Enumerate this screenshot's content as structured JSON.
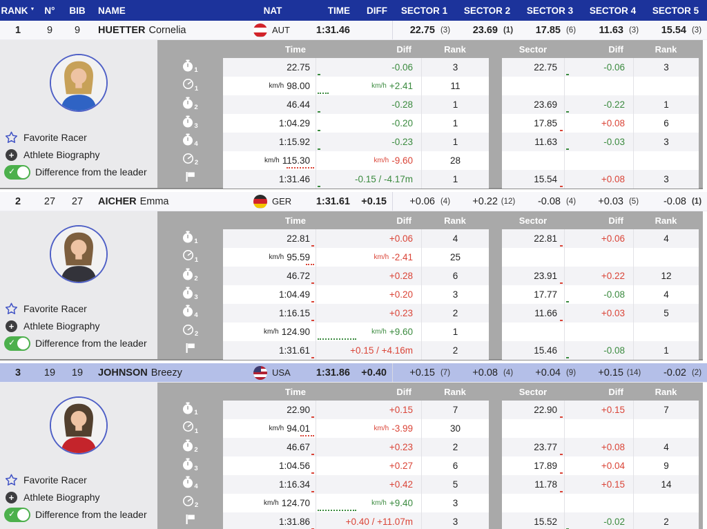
{
  "table": {
    "columns": {
      "rank": "RANK",
      "no": "N°",
      "bib": "BIB",
      "name": "NAME",
      "nat": "NAT",
      "time": "TIME",
      "diff": "DIFF",
      "sectors": [
        "SECTOR 1",
        "SECTOR 2",
        "SECTOR 3",
        "SECTOR 4",
        "SECTOR 5"
      ]
    }
  },
  "icons": {
    "sort_desc": "▼",
    "plus_glyph": "+",
    "check_glyph": "✓"
  },
  "colors": {
    "header_navy": "#1c339b",
    "positive_green": "#3a8a3e",
    "negative_red": "#da4437",
    "highlight_row": "#b4bfe8",
    "panel_gray": "#a9a9a9",
    "info_gray": "#eaeaec",
    "toggle_green": "#4cb04c",
    "accent_blue": "#4f60c6"
  },
  "panel": {
    "headers": {
      "time": "Time",
      "diff": "Diff",
      "rank": "Rank",
      "sector": "Sector",
      "diff2": "Diff",
      "rank2": "Rank"
    },
    "options": {
      "favorite": "Favorite Racer",
      "bio": "Athlete Biography",
      "toggle": "Difference from the leader",
      "toggle_state": "on"
    },
    "metrics": [
      {
        "type": "stopwatch",
        "sub": "1"
      },
      {
        "type": "speed",
        "sub": "1"
      },
      {
        "type": "stopwatch",
        "sub": "2"
      },
      {
        "type": "stopwatch",
        "sub": "3"
      },
      {
        "type": "stopwatch",
        "sub": "4"
      },
      {
        "type": "speed",
        "sub": "2"
      },
      {
        "type": "flag",
        "sub": ""
      }
    ]
  },
  "racers": [
    {
      "rank": "1",
      "no": "9",
      "bib": "9",
      "family": "HUETTER",
      "given": "Cornelia",
      "nat": "AUT",
      "time": "1:31.46",
      "diff": "",
      "highlight": false,
      "flag": {
        "stripes": [
          "#d2232a",
          "#ffffff",
          "#d2232a"
        ]
      },
      "avatar": {
        "hair": "#c7a158",
        "skin": "#eec3a3",
        "jacket": "#2f63c4"
      },
      "sectors": [
        {
          "v": "22.75",
          "r": "(3)",
          "vb": true,
          "rb": false
        },
        {
          "v": "23.69",
          "r": "(1)",
          "vb": true,
          "rb": true
        },
        {
          "v": "17.85",
          "r": "(6)",
          "vb": true,
          "rb": false
        },
        {
          "v": "11.63",
          "r": "(3)",
          "vb": true,
          "rb": false
        },
        {
          "v": "15.54",
          "r": "(3)",
          "vb": true,
          "rb": false
        }
      ],
      "rows": [
        {
          "t": "22.75",
          "u": 0,
          "d": "-0.06",
          "dc": "g",
          "du": 0,
          "rk": "3",
          "s": "22.75",
          "sd": "-0.06",
          "sdc": "g",
          "sr": "3",
          "dn": 1
        },
        {
          "t": "98.00",
          "u": 1,
          "d": "+2.41",
          "dc": "g",
          "du": 1,
          "rk": "11",
          "s": "",
          "sd": "",
          "sdc": "",
          "sr": "",
          "dn": 4
        },
        {
          "t": "46.44",
          "u": 0,
          "d": "-0.28",
          "dc": "g",
          "du": 0,
          "rk": "1",
          "s": "23.69",
          "sd": "-0.22",
          "sdc": "g",
          "sr": "1",
          "dn": 1
        },
        {
          "t": "1:04.29",
          "u": 0,
          "d": "-0.20",
          "dc": "g",
          "du": 0,
          "rk": "1",
          "s": "17.85",
          "sd": "+0.08",
          "sdc": "r",
          "sr": "6",
          "dn": 1
        },
        {
          "t": "1:15.92",
          "u": 0,
          "d": "-0.23",
          "dc": "g",
          "du": 0,
          "rk": "1",
          "s": "11.63",
          "sd": "-0.03",
          "sdc": "g",
          "sr": "3",
          "dn": 1
        },
        {
          "t": "115.30",
          "u": 1,
          "d": "-9.60",
          "dc": "r",
          "du": 1,
          "rk": "28",
          "s": "",
          "sd": "",
          "sdc": "",
          "sr": "",
          "dn": 10
        },
        {
          "t": "1:31.46",
          "u": 0,
          "d": "-0.15 / -4.17m",
          "dc": "g",
          "du": 0,
          "rk": "1",
          "s": "15.54",
          "sd": "+0.08",
          "sdc": "r",
          "sr": "3",
          "dn": 1
        }
      ]
    },
    {
      "rank": "2",
      "no": "27",
      "bib": "27",
      "family": "AICHER",
      "given": "Emma",
      "nat": "GER",
      "time": "1:31.61",
      "diff": "+0.15",
      "highlight": false,
      "flag": {
        "stripes": [
          "#2b2b2b",
          "#d2232a",
          "#f3c500"
        ]
      },
      "avatar": {
        "hair": "#7d5f3e",
        "skin": "#eec3a3",
        "jacket": "#33333a"
      },
      "sectors": [
        {
          "v": "+0.06",
          "r": "(4)",
          "vb": false,
          "rb": false
        },
        {
          "v": "+0.22",
          "r": "(12)",
          "vb": false,
          "rb": false
        },
        {
          "v": "-0.08",
          "r": "(4)",
          "vb": false,
          "rb": false
        },
        {
          "v": "+0.03",
          "r": "(5)",
          "vb": false,
          "rb": false
        },
        {
          "v": "-0.08",
          "r": "(1)",
          "vb": false,
          "rb": true
        }
      ],
      "rows": [
        {
          "t": "22.81",
          "u": 0,
          "d": "+0.06",
          "dc": "r",
          "du": 0,
          "rk": "4",
          "s": "22.81",
          "sd": "+0.06",
          "sdc": "r",
          "sr": "4",
          "dn": 1
        },
        {
          "t": "95.59",
          "u": 1,
          "d": "-2.41",
          "dc": "r",
          "du": 1,
          "rk": "25",
          "s": "",
          "sd": "",
          "sdc": "",
          "sr": "",
          "dn": 3
        },
        {
          "t": "46.72",
          "u": 0,
          "d": "+0.28",
          "dc": "r",
          "du": 0,
          "rk": "6",
          "s": "23.91",
          "sd": "+0.22",
          "sdc": "r",
          "sr": "12",
          "dn": 1
        },
        {
          "t": "1:04.49",
          "u": 0,
          "d": "+0.20",
          "dc": "r",
          "du": 0,
          "rk": "3",
          "s": "17.77",
          "sd": "-0.08",
          "sdc": "g",
          "sr": "4",
          "dn": 1
        },
        {
          "t": "1:16.15",
          "u": 0,
          "d": "+0.23",
          "dc": "r",
          "du": 0,
          "rk": "2",
          "s": "11.66",
          "sd": "+0.03",
          "sdc": "r",
          "sr": "5",
          "dn": 1
        },
        {
          "t": "124.90",
          "u": 1,
          "d": "+9.60",
          "dc": "g",
          "du": 1,
          "rk": "1",
          "s": "",
          "sd": "",
          "sdc": "",
          "sr": "",
          "dn": 14
        },
        {
          "t": "1:31.61",
          "u": 0,
          "d": "+0.15 / +4.16m",
          "dc": "r",
          "du": 0,
          "rk": "2",
          "s": "15.46",
          "sd": "-0.08",
          "sdc": "g",
          "sr": "1",
          "dn": 1
        }
      ]
    },
    {
      "rank": "3",
      "no": "19",
      "bib": "19",
      "family": "JOHNSON",
      "given": "Breezy",
      "nat": "USA",
      "time": "1:31.86",
      "diff": "+0.40",
      "highlight": true,
      "flag": {
        "stripes": [
          "#b22234",
          "#ffffff",
          "#b22234",
          "#ffffff",
          "#b22234"
        ],
        "canton": "#3c3b6e"
      },
      "avatar": {
        "hair": "#52402e",
        "skin": "#eec3a3",
        "jacket": "#c4242b"
      },
      "sectors": [
        {
          "v": "+0.15",
          "r": "(7)",
          "vb": false,
          "rb": false
        },
        {
          "v": "+0.08",
          "r": "(4)",
          "vb": false,
          "rb": false
        },
        {
          "v": "+0.04",
          "r": "(9)",
          "vb": false,
          "rb": false
        },
        {
          "v": "+0.15",
          "r": "(14)",
          "vb": false,
          "rb": false
        },
        {
          "v": "-0.02",
          "r": "(2)",
          "vb": false,
          "rb": false
        }
      ],
      "rows": [
        {
          "t": "22.90",
          "u": 0,
          "d": "+0.15",
          "dc": "r",
          "du": 0,
          "rk": "7",
          "s": "22.90",
          "sd": "+0.15",
          "sdc": "r",
          "sr": "7",
          "dn": 1
        },
        {
          "t": "94.01",
          "u": 1,
          "d": "-3.99",
          "dc": "r",
          "du": 1,
          "rk": "30",
          "s": "",
          "sd": "",
          "sdc": "",
          "sr": "",
          "dn": 5
        },
        {
          "t": "46.67",
          "u": 0,
          "d": "+0.23",
          "dc": "r",
          "du": 0,
          "rk": "2",
          "s": "23.77",
          "sd": "+0.08",
          "sdc": "r",
          "sr": "4",
          "dn": 1
        },
        {
          "t": "1:04.56",
          "u": 0,
          "d": "+0.27",
          "dc": "r",
          "du": 0,
          "rk": "6",
          "s": "17.89",
          "sd": "+0.04",
          "sdc": "r",
          "sr": "9",
          "dn": 1
        },
        {
          "t": "1:16.34",
          "u": 0,
          "d": "+0.42",
          "dc": "r",
          "du": 0,
          "rk": "5",
          "s": "11.78",
          "sd": "+0.15",
          "sdc": "r",
          "sr": "14",
          "dn": 1
        },
        {
          "t": "124.70",
          "u": 1,
          "d": "+9.40",
          "dc": "g",
          "du": 1,
          "rk": "3",
          "s": "",
          "sd": "",
          "sdc": "",
          "sr": "",
          "dn": 14
        },
        {
          "t": "1:31.86",
          "u": 0,
          "d": "+0.40 / +11.07m",
          "dc": "r",
          "du": 0,
          "rk": "3",
          "s": "15.52",
          "sd": "-0.02",
          "sdc": "g",
          "sr": "2",
          "dn": 1
        }
      ]
    }
  ]
}
